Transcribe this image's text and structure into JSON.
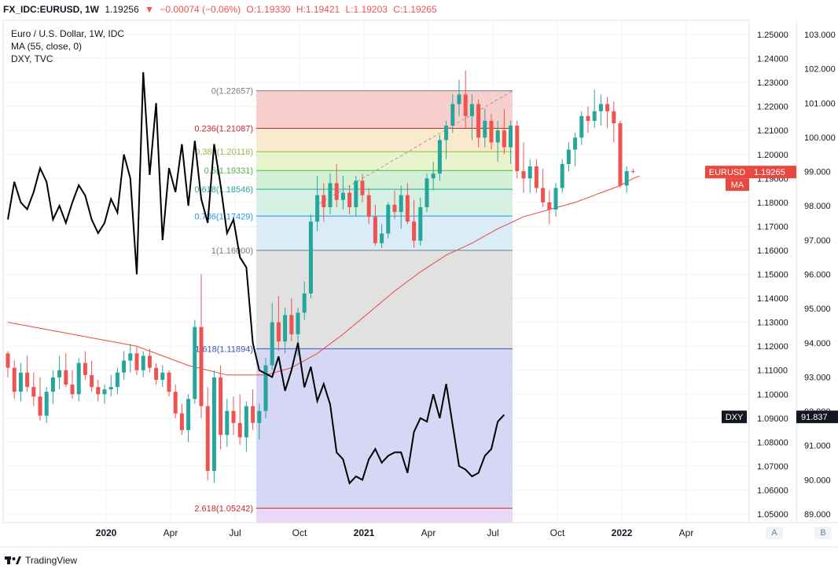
{
  "header": {
    "symbol": "FX_IDC:EURUSD, 1W",
    "last": "1.19256",
    "change": "−0.00074 (−0.06%)",
    "open": "O:1.19330",
    "high": "H:1.19421",
    "low": "L:1.19203",
    "close": "C:1.19265"
  },
  "legend": {
    "main": "Euro / U.S. Dollar, 1W, IDC",
    "ma": "MA (55, close, 0)",
    "compare": "DXY, TVC"
  },
  "colors": {
    "up": "#26a69a",
    "down": "#ef5350",
    "ma": "#e8483f",
    "dxy": "#000000"
  },
  "footer": {
    "brand": "TradingView"
  },
  "axis_buttons": [
    "A",
    "B"
  ],
  "chart_data": {
    "type": "candlestick",
    "title": "Euro / U.S. Dollar, 1W, IDC",
    "x_tick_labels": [
      "2020",
      "Apr",
      "Jul",
      "Oct",
      "2021",
      "Apr",
      "Jul",
      "Oct",
      "2022",
      "Apr"
    ],
    "y_left_range": [
      1.045,
      1.258
    ],
    "y_right_range": [
      88.6,
      103.2
    ],
    "y_left_ticks": [
      "1.25000",
      "1.24000",
      "1.23000",
      "1.22000",
      "1.21000",
      "1.20000",
      "1.19000",
      "1.18000",
      "1.17000",
      "1.16000",
      "1.15000",
      "1.14000",
      "1.13000",
      "1.12000",
      "1.11000",
      "1.10000",
      "1.09000",
      "1.08000",
      "1.07000",
      "1.06000",
      "1.05000"
    ],
    "y_right_ticks": [
      "103.000",
      "102.000",
      "101.000",
      "100.000",
      "99.000",
      "98.000",
      "97.000",
      "96.000",
      "95.000",
      "94.000",
      "93.000",
      "92.000",
      "91.000",
      "90.000",
      "89.000"
    ],
    "fib_levels": [
      {
        "label": "0(1.22657)",
        "value": 1.22657
      },
      {
        "label": "0.236(1.21087)",
        "value": 1.21087
      },
      {
        "label": "0.382(1.20116)",
        "value": 1.20116
      },
      {
        "label": "0.5(1.19331)",
        "value": 1.19331
      },
      {
        "label": "0.618(1.18546)",
        "value": 1.18546
      },
      {
        "label": "0.786(1.17429)",
        "value": 1.17429
      },
      {
        "label": "1(1.16000)",
        "value": 1.16
      },
      {
        "label": "1.618(1.11894)",
        "value": 1.11894
      },
      {
        "label": "2.618(1.05242)",
        "value": 1.05242
      }
    ],
    "price_tags": [
      {
        "label": "EURUSD",
        "value": "1.19265",
        "color": "#e8483f"
      },
      {
        "label": "MA",
        "value": "",
        "color": "#e8483f"
      },
      {
        "label": "DXY",
        "value": "91.837",
        "color": "#131722"
      }
    ],
    "candles": [
      [
        1.117,
        1.118,
        1.107,
        1.111
      ],
      [
        1.111,
        1.114,
        1.098,
        1.101
      ],
      [
        1.101,
        1.113,
        1.097,
        1.109
      ],
      [
        1.109,
        1.116,
        1.101,
        1.103
      ],
      [
        1.103,
        1.109,
        1.095,
        1.099
      ],
      [
        1.099,
        1.107,
        1.089,
        1.091
      ],
      [
        1.091,
        1.103,
        1.088,
        1.101
      ],
      [
        1.101,
        1.11,
        1.096,
        1.107
      ],
      [
        1.107,
        1.116,
        1.102,
        1.11
      ],
      [
        1.11,
        1.117,
        1.103,
        1.104
      ],
      [
        1.104,
        1.11,
        1.098,
        1.1
      ],
      [
        1.1,
        1.115,
        1.097,
        1.113
      ],
      [
        1.113,
        1.118,
        1.106,
        1.108
      ],
      [
        1.108,
        1.114,
        1.101,
        1.103
      ],
      [
        1.103,
        1.106,
        1.097,
        1.1
      ],
      [
        1.1,
        1.104,
        1.096,
        1.102
      ],
      [
        1.102,
        1.108,
        1.099,
        1.103
      ],
      [
        1.103,
        1.111,
        1.1,
        1.109
      ],
      [
        1.109,
        1.118,
        1.106,
        1.114
      ],
      [
        1.114,
        1.121,
        1.109,
        1.117
      ],
      [
        1.117,
        1.12,
        1.108,
        1.11
      ],
      [
        1.11,
        1.118,
        1.107,
        1.116
      ],
      [
        1.116,
        1.119,
        1.109,
        1.111
      ],
      [
        1.111,
        1.113,
        1.104,
        1.106
      ],
      [
        1.106,
        1.112,
        1.103,
        1.109
      ],
      [
        1.109,
        1.11,
        1.099,
        1.101
      ],
      [
        1.101,
        1.104,
        1.09,
        1.092
      ],
      [
        1.092,
        1.096,
        1.083,
        1.085
      ],
      [
        1.085,
        1.1,
        1.08,
        1.098
      ],
      [
        1.098,
        1.131,
        1.096,
        1.128
      ],
      [
        1.128,
        1.15,
        1.09,
        1.095
      ],
      [
        1.095,
        1.103,
        1.064,
        1.068
      ],
      [
        1.068,
        1.11,
        1.063,
        1.107
      ],
      [
        1.107,
        1.112,
        1.077,
        1.083
      ],
      [
        1.083,
        1.098,
        1.078,
        1.093
      ],
      [
        1.093,
        1.099,
        1.083,
        1.088
      ],
      [
        1.088,
        1.1,
        1.079,
        1.082
      ],
      [
        1.082,
        1.097,
        1.076,
        1.095
      ],
      [
        1.095,
        1.102,
        1.085,
        1.088
      ],
      [
        1.088,
        1.096,
        1.081,
        1.093
      ],
      [
        1.093,
        1.115,
        1.09,
        1.112
      ],
      [
        1.112,
        1.138,
        1.11,
        1.13
      ],
      [
        1.13,
        1.141,
        1.118,
        1.122
      ],
      [
        1.122,
        1.136,
        1.117,
        1.133
      ],
      [
        1.133,
        1.14,
        1.122,
        1.125
      ],
      [
        1.125,
        1.136,
        1.116,
        1.134
      ],
      [
        1.134,
        1.147,
        1.131,
        1.142
      ],
      [
        1.142,
        1.175,
        1.14,
        1.172
      ],
      [
        1.172,
        1.191,
        1.168,
        1.183
      ],
      [
        1.183,
        1.188,
        1.172,
        1.178
      ],
      [
        1.178,
        1.192,
        1.175,
        1.188
      ],
      [
        1.188,
        1.196,
        1.178,
        1.181
      ],
      [
        1.181,
        1.191,
        1.177,
        1.184
      ],
      [
        1.184,
        1.187,
        1.175,
        1.178
      ],
      [
        1.178,
        1.191,
        1.174,
        1.189
      ],
      [
        1.189,
        1.192,
        1.18,
        1.183
      ],
      [
        1.183,
        1.186,
        1.171,
        1.174
      ],
      [
        1.174,
        1.179,
        1.162,
        1.163
      ],
      [
        1.163,
        1.171,
        1.161,
        1.167
      ],
      [
        1.167,
        1.18,
        1.165,
        1.179
      ],
      [
        1.179,
        1.185,
        1.173,
        1.176
      ],
      [
        1.176,
        1.187,
        1.169,
        1.183
      ],
      [
        1.183,
        1.188,
        1.171,
        1.172
      ],
      [
        1.172,
        1.181,
        1.161,
        1.164
      ],
      [
        1.164,
        1.182,
        1.162,
        1.178
      ],
      [
        1.178,
        1.192,
        1.176,
        1.19
      ],
      [
        1.19,
        1.197,
        1.185,
        1.192
      ],
      [
        1.192,
        1.208,
        1.189,
        1.206
      ],
      [
        1.206,
        1.214,
        1.198,
        1.212
      ],
      [
        1.212,
        1.225,
        1.209,
        1.221
      ],
      [
        1.221,
        1.231,
        1.216,
        1.225
      ],
      [
        1.225,
        1.235,
        1.211,
        1.216
      ],
      [
        1.216,
        1.225,
        1.206,
        1.221
      ],
      [
        1.221,
        1.223,
        1.203,
        1.207
      ],
      [
        1.207,
        1.219,
        1.203,
        1.214
      ],
      [
        1.214,
        1.217,
        1.202,
        1.205
      ],
      [
        1.205,
        1.214,
        1.197,
        1.21
      ],
      [
        1.21,
        1.219,
        1.2,
        1.203
      ],
      [
        1.203,
        1.214,
        1.196,
        1.212
      ],
      [
        1.212,
        1.214,
        1.19,
        1.193
      ],
      [
        1.193,
        1.205,
        1.184,
        1.19
      ],
      [
        1.19,
        1.198,
        1.184,
        1.195
      ],
      [
        1.195,
        1.198,
        1.184,
        1.186
      ],
      [
        1.186,
        1.194,
        1.178,
        1.18
      ],
      [
        1.18,
        1.185,
        1.171,
        1.177
      ],
      [
        1.177,
        1.188,
        1.174,
        1.186
      ],
      [
        1.186,
        1.198,
        1.184,
        1.196
      ],
      [
        1.196,
        1.205,
        1.193,
        1.202
      ],
      [
        1.202,
        1.209,
        1.195,
        1.207
      ],
      [
        1.207,
        1.218,
        1.204,
        1.216
      ],
      [
        1.216,
        1.22,
        1.209,
        1.214
      ],
      [
        1.214,
        1.227,
        1.211,
        1.218
      ],
      [
        1.218,
        1.225,
        1.212,
        1.221
      ],
      [
        1.221,
        1.224,
        1.211,
        1.218
      ],
      [
        1.218,
        1.222,
        1.205,
        1.213
      ],
      [
        1.213,
        1.214,
        1.186,
        1.187
      ],
      [
        1.187,
        1.195,
        1.184,
        1.193
      ],
      [
        1.193,
        1.194,
        1.192,
        1.1927
      ]
    ],
    "ma55": [
      [
        0,
        1.13
      ],
      [
        10,
        1.125
      ],
      [
        20,
        1.12
      ],
      [
        28,
        1.112
      ],
      [
        34,
        1.108
      ],
      [
        40,
        1.108
      ],
      [
        44,
        1.111
      ],
      [
        48,
        1.117
      ],
      [
        52,
        1.125
      ],
      [
        56,
        1.134
      ],
      [
        60,
        1.143
      ],
      [
        64,
        1.151
      ],
      [
        68,
        1.158
      ],
      [
        72,
        1.163
      ],
      [
        76,
        1.169
      ],
      [
        80,
        1.174
      ],
      [
        84,
        1.177
      ],
      [
        88,
        1.18
      ],
      [
        92,
        1.184
      ],
      [
        95,
        1.187
      ],
      [
        97,
        1.19
      ],
      [
        98,
        1.191
      ]
    ],
    "dxy": [
      [
        0,
        97.6
      ],
      [
        1,
        98.7
      ],
      [
        2,
        98.1
      ],
      [
        3,
        97.9
      ],
      [
        4,
        98.4
      ],
      [
        5,
        99.1
      ],
      [
        6,
        98.7
      ],
      [
        7,
        97.6
      ],
      [
        8,
        98.0
      ],
      [
        9,
        97.5
      ],
      [
        10,
        98.1
      ],
      [
        11,
        98.6
      ],
      [
        12,
        98.3
      ],
      [
        13,
        97.6
      ],
      [
        14,
        97.2
      ],
      [
        15,
        97.5
      ],
      [
        16,
        98.2
      ],
      [
        17,
        97.8
      ],
      [
        18,
        99.5
      ],
      [
        19,
        98.8
      ],
      [
        20,
        96.0
      ],
      [
        21,
        101.9
      ],
      [
        22,
        98.9
      ],
      [
        23,
        101.0
      ],
      [
        24,
        97.0
      ],
      [
        25,
        99.1
      ],
      [
        26,
        98.4
      ],
      [
        27,
        99.8
      ],
      [
        28,
        98.0
      ],
      [
        29,
        99.9
      ],
      [
        30,
        98.2
      ],
      [
        31,
        97.5
      ],
      [
        32,
        99.8
      ],
      [
        33,
        98.6
      ],
      [
        34,
        97.2
      ],
      [
        35,
        97.6
      ],
      [
        36,
        96.5
      ],
      [
        37,
        96.2
      ],
      [
        38,
        94.0
      ],
      [
        39,
        93.2
      ],
      [
        40,
        93.1
      ],
      [
        41,
        93.0
      ],
      [
        42,
        93.6
      ],
      [
        43,
        92.6
      ],
      [
        44,
        93.2
      ],
      [
        45,
        94.0
      ],
      [
        46,
        92.7
      ],
      [
        47,
        93.3
      ],
      [
        48,
        92.3
      ],
      [
        49,
        92.8
      ],
      [
        50,
        92.2
      ],
      [
        51,
        90.8
      ],
      [
        52,
        90.6
      ],
      [
        53,
        89.9
      ],
      [
        54,
        90.1
      ],
      [
        55,
        90.0
      ],
      [
        56,
        90.6
      ],
      [
        57,
        90.9
      ],
      [
        58,
        90.5
      ],
      [
        59,
        90.7
      ],
      [
        60,
        90.8
      ],
      [
        61,
        90.8
      ],
      [
        62,
        90.2
      ],
      [
        63,
        91.4
      ],
      [
        64,
        91.8
      ],
      [
        65,
        91.7
      ],
      [
        66,
        92.5
      ],
      [
        67,
        91.8
      ],
      [
        68,
        92.8
      ],
      [
        69,
        91.6
      ],
      [
        70,
        90.4
      ],
      [
        71,
        90.3
      ],
      [
        72,
        90.1
      ],
      [
        73,
        90.2
      ],
      [
        74,
        90.7
      ],
      [
        75,
        90.9
      ],
      [
        76,
        91.7
      ],
      [
        77,
        91.9
      ]
    ]
  }
}
